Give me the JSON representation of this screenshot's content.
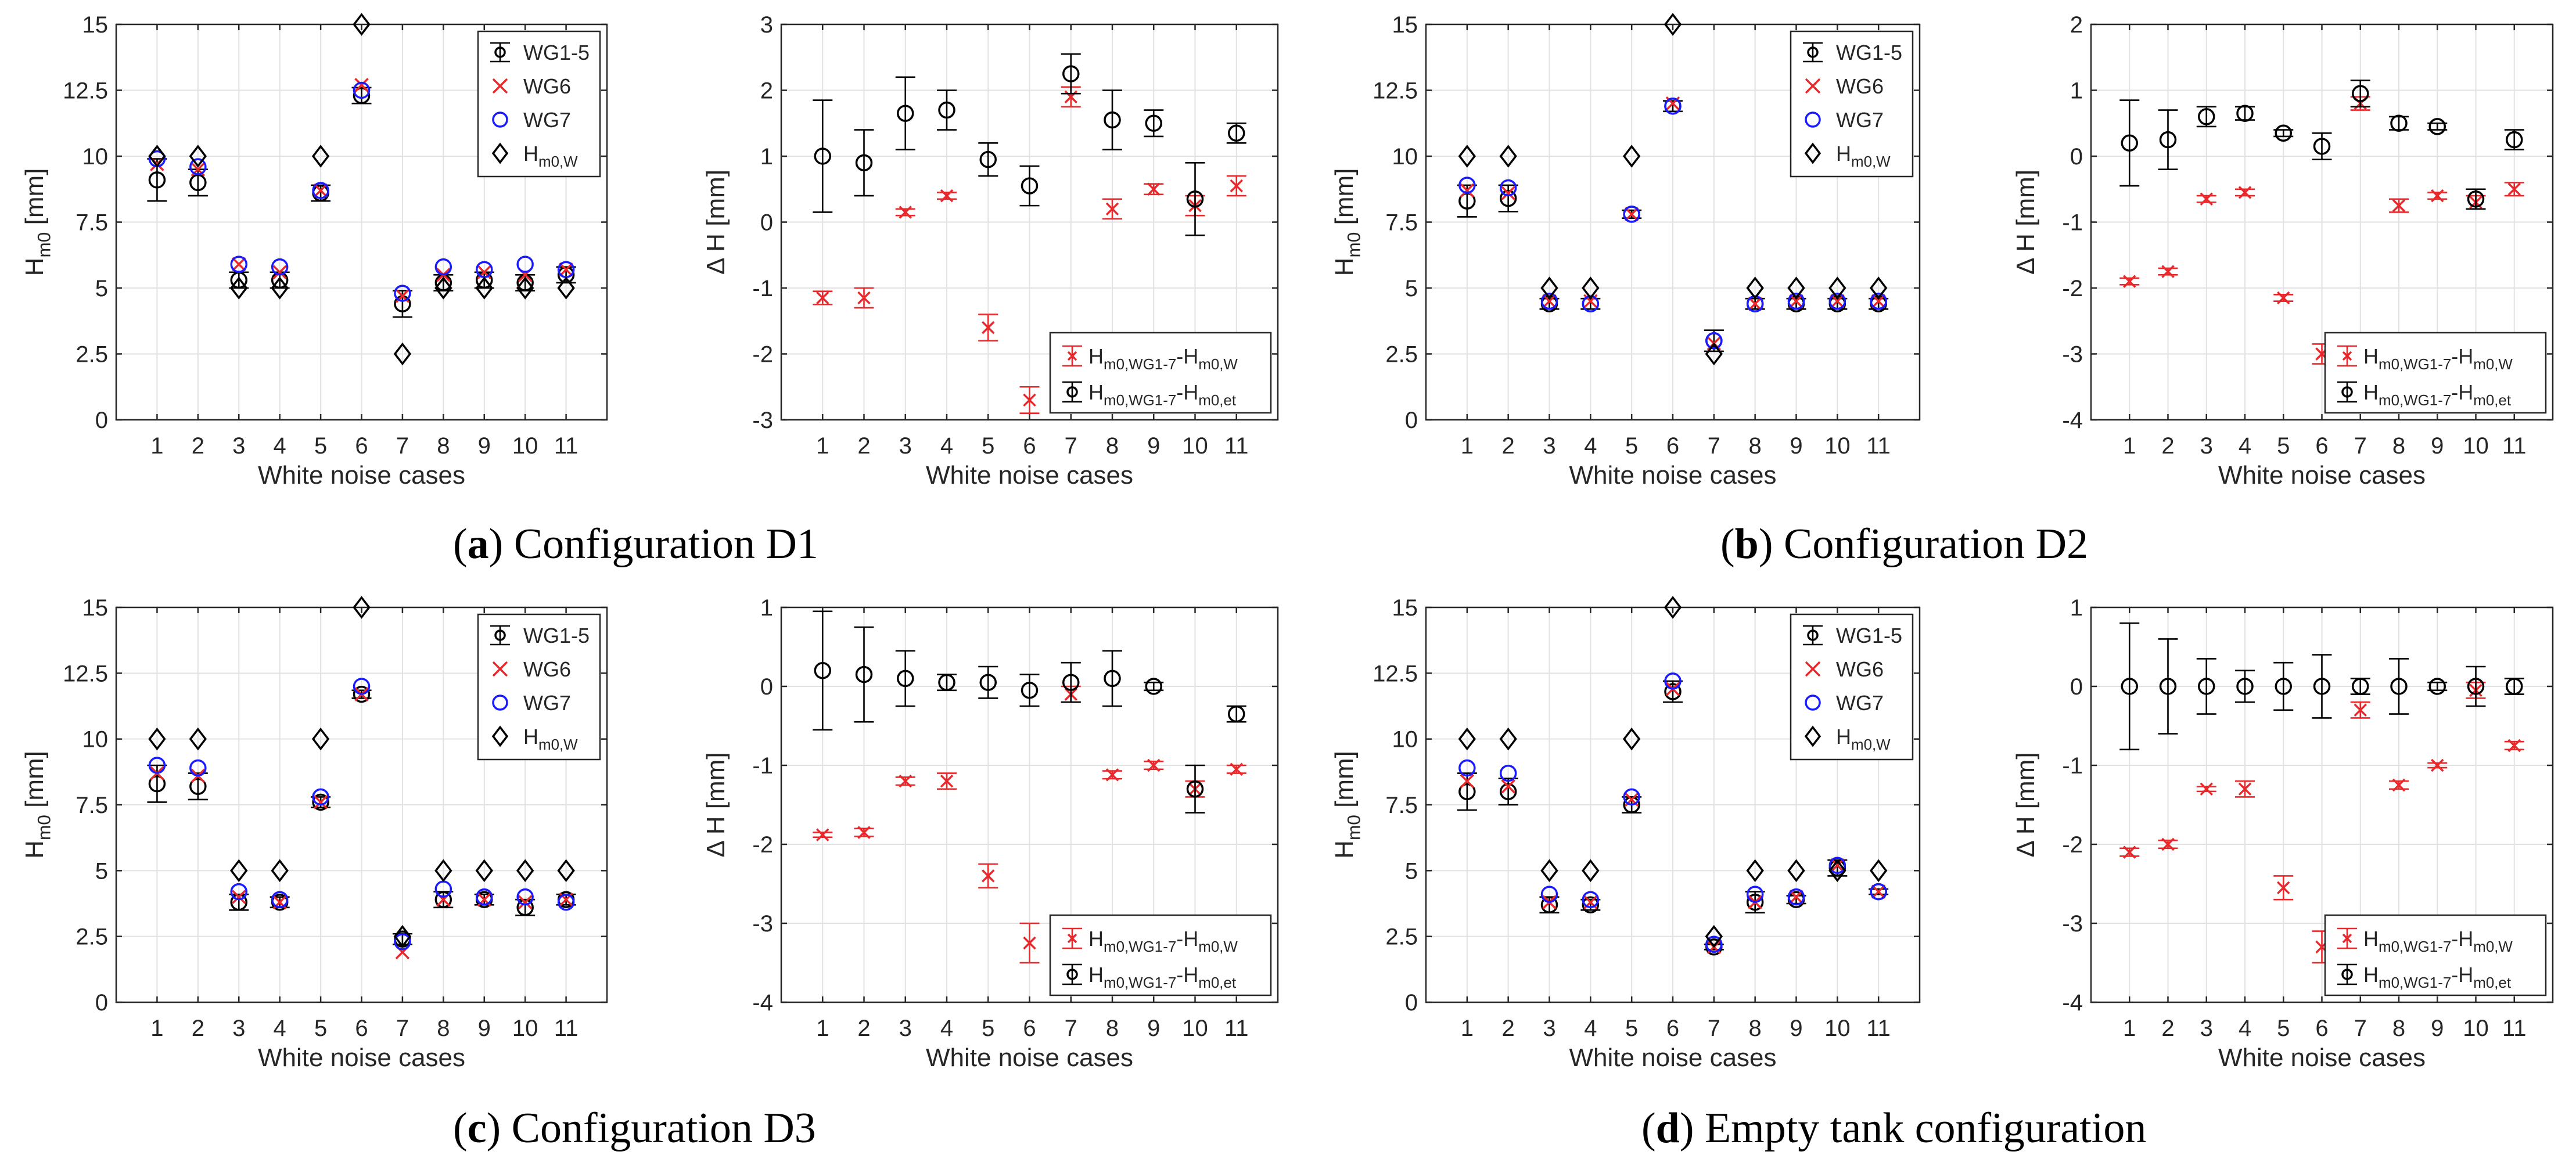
{
  "captions": [
    {
      "letter": "a",
      "text": "Configuration D1"
    },
    {
      "letter": "b",
      "text": "Configuration D2"
    },
    {
      "letter": "c",
      "text": "Configuration D3"
    },
    {
      "letter": "d",
      "text": "Empty tank configuration"
    }
  ],
  "colors": {
    "black": "#000000",
    "red": "#e8282b",
    "blue": "#1a1aff",
    "grid": "#e2e2e2",
    "axis": "#262626"
  },
  "chart_data": [
    {
      "type": "scatter",
      "panel": "a-left",
      "xlabel": "White noise cases",
      "ylabel": "H_m0 [mm]",
      "ylim": [
        0,
        15
      ],
      "yticks": [
        "0",
        "2.5",
        "5",
        "7.5",
        "10",
        "12.5",
        "15"
      ],
      "xticks": [
        "1",
        "2",
        "3",
        "4",
        "5",
        "6",
        "7",
        "8",
        "9",
        "10",
        "11"
      ],
      "legend": [
        "WG1-5",
        "WG6",
        "WG7",
        "H_m0,W"
      ],
      "series": [
        {
          "name": "WG1-5",
          "values": [
            9.1,
            9.0,
            5.3,
            5.3,
            8.6,
            12.3,
            4.4,
            5.2,
            5.3,
            5.2,
            5.5
          ],
          "err": [
            0.8,
            0.5,
            0.3,
            0.3,
            0.3,
            0.3,
            0.5,
            0.3,
            0.3,
            0.3,
            0.3
          ]
        },
        {
          "name": "WG6",
          "values": [
            9.7,
            9.5,
            5.9,
            5.6,
            8.7,
            12.7,
            4.7,
            5.5,
            5.6,
            5.5,
            5.7
          ]
        },
        {
          "name": "WG7",
          "values": [
            9.9,
            9.6,
            5.9,
            5.8,
            8.7,
            12.5,
            4.8,
            5.8,
            5.7,
            5.9,
            5.7
          ]
        },
        {
          "name": "H_m0,W",
          "values": [
            10,
            10,
            5,
            5,
            10,
            15,
            2.5,
            5,
            5,
            5,
            5
          ]
        }
      ]
    },
    {
      "type": "scatter",
      "panel": "a-right",
      "xlabel": "White noise cases",
      "ylabel": "Δ H [mm]",
      "ylim": [
        -3,
        3
      ],
      "yticks": [
        "-3",
        "-2",
        "-1",
        "0",
        "1",
        "2",
        "3"
      ],
      "xticks": [
        "1",
        "2",
        "3",
        "4",
        "5",
        "6",
        "7",
        "8",
        "9",
        "10",
        "11"
      ],
      "legend": [
        "H_m0,WG1-7-H_m0,W",
        "H_m0,WG1-7-H_m0,et"
      ],
      "series": [
        {
          "name": "H_m0,WG1-7-H_m0,W",
          "values": [
            -1.15,
            -1.15,
            0.15,
            0.4,
            -1.6,
            -2.7,
            1.9,
            0.2,
            0.5,
            0.25,
            0.55
          ],
          "err": [
            0.1,
            0.15,
            0.05,
            0.05,
            0.2,
            0.2,
            0.15,
            0.15,
            0.08,
            0.15,
            0.15
          ]
        },
        {
          "name": "H_m0,WG1-7-H_m0,et",
          "values": [
            1.0,
            0.9,
            1.65,
            1.7,
            0.95,
            0.55,
            2.25,
            1.55,
            1.5,
            0.35,
            1.35
          ],
          "err": [
            0.85,
            0.5,
            0.55,
            0.3,
            0.25,
            0.3,
            0.3,
            0.45,
            0.2,
            0.55,
            0.15
          ]
        }
      ]
    },
    {
      "type": "scatter",
      "panel": "b-left",
      "xlabel": "White noise cases",
      "ylabel": "H_m0 [mm]",
      "ylim": [
        0,
        15
      ],
      "yticks": [
        "0",
        "2.5",
        "5",
        "7.5",
        "10",
        "12.5",
        "15"
      ],
      "xticks": [
        "1",
        "2",
        "3",
        "4",
        "5",
        "6",
        "7",
        "8",
        "9",
        "10",
        "11"
      ],
      "legend": [
        "WG1-5",
        "WG6",
        "WG7",
        "H_m0,W"
      ],
      "series": [
        {
          "name": "WG1-5",
          "values": [
            8.3,
            8.4,
            4.4,
            4.4,
            7.8,
            11.9,
            3.0,
            4.4,
            4.4,
            4.4,
            4.4
          ],
          "err": [
            0.6,
            0.5,
            0.2,
            0.2,
            0.15,
            0.2,
            0.4,
            0.2,
            0.2,
            0.2,
            0.2
          ]
        },
        {
          "name": "WG6",
          "values": [
            8.7,
            8.6,
            4.5,
            4.5,
            7.8,
            12.0,
            2.9,
            4.4,
            4.5,
            4.5,
            4.5
          ]
        },
        {
          "name": "WG7",
          "values": [
            8.9,
            8.8,
            4.5,
            4.4,
            7.8,
            11.9,
            3.0,
            4.4,
            4.5,
            4.5,
            4.5
          ]
        },
        {
          "name": "H_m0,W",
          "values": [
            10,
            10,
            5,
            5,
            10,
            15,
            2.5,
            5,
            5,
            5,
            5
          ]
        }
      ]
    },
    {
      "type": "scatter",
      "panel": "b-right",
      "xlabel": "White noise cases",
      "ylabel": "Δ H [mm]",
      "ylim": [
        -4,
        2
      ],
      "yticks": [
        "-4",
        "-3",
        "-2",
        "-1",
        "0",
        "1",
        "2"
      ],
      "xticks": [
        "1",
        "2",
        "3",
        "4",
        "5",
        "6",
        "7",
        "8",
        "9",
        "10",
        "11"
      ],
      "legend": [
        "H_m0,WG1-7-H_m0,W",
        "H_m0,WG1-7-H_m0,et"
      ],
      "series": [
        {
          "name": "H_m0,WG1-7-H_m0,W",
          "values": [
            -1.9,
            -1.75,
            -0.65,
            -0.55,
            -2.15,
            -3.0,
            0.8,
            -0.75,
            -0.6,
            -0.7,
            -0.5
          ],
          "err": [
            0.05,
            0.05,
            0.05,
            0.05,
            0.05,
            0.15,
            0.1,
            0.1,
            0.05,
            0.1,
            0.1
          ]
        },
        {
          "name": "H_m0,WG1-7-H_m0,et",
          "values": [
            0.2,
            0.25,
            0.6,
            0.65,
            0.35,
            0.15,
            0.95,
            0.5,
            0.45,
            -0.65,
            0.25
          ],
          "err": [
            0.65,
            0.45,
            0.15,
            0.1,
            0.05,
            0.2,
            0.2,
            0.1,
            0.05,
            0.15,
            0.15
          ]
        }
      ]
    },
    {
      "type": "scatter",
      "panel": "c-left",
      "xlabel": "White noise cases",
      "ylabel": "H_m0 [mm]",
      "ylim": [
        0,
        15
      ],
      "yticks": [
        "0",
        "2.5",
        "5",
        "7.5",
        "10",
        "12.5",
        "15"
      ],
      "xticks": [
        "1",
        "2",
        "3",
        "4",
        "5",
        "6",
        "7",
        "8",
        "9",
        "10",
        "11"
      ],
      "legend": [
        "WG1-5",
        "WG6",
        "WG7",
        "H_m0,W"
      ],
      "series": [
        {
          "name": "WG1-5",
          "values": [
            8.3,
            8.2,
            3.8,
            3.8,
            7.6,
            11.7,
            2.4,
            3.9,
            3.9,
            3.6,
            3.9
          ],
          "err": [
            0.7,
            0.5,
            0.3,
            0.2,
            0.2,
            0.15,
            0.2,
            0.3,
            0.2,
            0.3,
            0.2
          ]
        },
        {
          "name": "WG6",
          "values": [
            8.7,
            8.6,
            4.0,
            3.8,
            7.6,
            11.7,
            1.9,
            3.9,
            3.9,
            3.8,
            3.9
          ]
        },
        {
          "name": "WG7",
          "values": [
            9.0,
            8.9,
            4.2,
            3.9,
            7.8,
            12.0,
            2.3,
            4.3,
            4.0,
            4.0,
            3.8
          ]
        },
        {
          "name": "H_m0,W",
          "values": [
            10,
            10,
            5,
            5,
            10,
            15,
            2.5,
            5,
            5,
            5,
            5
          ]
        }
      ]
    },
    {
      "type": "scatter",
      "panel": "c-right",
      "xlabel": "White noise cases",
      "ylabel": "Δ H [mm]",
      "ylim": [
        -4,
        1
      ],
      "yticks": [
        "-4",
        "-3",
        "-2",
        "-1",
        "0",
        "1"
      ],
      "xticks": [
        "1",
        "2",
        "3",
        "4",
        "5",
        "6",
        "7",
        "8",
        "9",
        "10",
        "11"
      ],
      "legend": [
        "H_m0,WG1-7-H_m0,W",
        "H_m0,WG1-7-H_m0,et"
      ],
      "series": [
        {
          "name": "H_m0,WG1-7-H_m0,W",
          "values": [
            -1.88,
            -1.85,
            -1.2,
            -1.2,
            -2.4,
            -3.25,
            -0.1,
            -1.12,
            -1.0,
            -1.3,
            -1.05
          ],
          "err": [
            0.03,
            0.05,
            0.05,
            0.1,
            0.15,
            0.25,
            0.1,
            0.05,
            0.05,
            0.1,
            0.05
          ]
        },
        {
          "name": "H_m0,WG1-7-H_m0,et",
          "values": [
            0.2,
            0.15,
            0.1,
            0.05,
            0.05,
            -0.05,
            0.05,
            0.1,
            0.0,
            -1.3,
            -0.35
          ],
          "err": [
            0.75,
            0.6,
            0.35,
            0.1,
            0.2,
            0.2,
            0.25,
            0.35,
            0.05,
            0.3,
            0.1
          ]
        }
      ]
    },
    {
      "type": "scatter",
      "panel": "d-left",
      "xlabel": "White noise cases",
      "ylabel": "H_m0 [mm]",
      "ylim": [
        0,
        15
      ],
      "yticks": [
        "0",
        "2.5",
        "5",
        "7.5",
        "10",
        "12.5",
        "15"
      ],
      "xticks": [
        "1",
        "2",
        "3",
        "4",
        "5",
        "6",
        "7",
        "8",
        "9",
        "10",
        "11"
      ],
      "legend": [
        "WG1-5",
        "WG6",
        "WG7",
        "H_m0,W"
      ],
      "series": [
        {
          "name": "WG1-5",
          "values": [
            8.0,
            8.0,
            3.7,
            3.7,
            7.5,
            11.8,
            2.1,
            3.8,
            3.9,
            5.1,
            4.2
          ],
          "err": [
            0.7,
            0.5,
            0.3,
            0.2,
            0.3,
            0.4,
            0.1,
            0.4,
            0.15,
            0.3,
            0.1
          ]
        },
        {
          "name": "WG6",
          "values": [
            8.4,
            8.2,
            3.8,
            3.8,
            7.7,
            11.9,
            2.1,
            3.8,
            4.0,
            5.2,
            4.2
          ]
        },
        {
          "name": "WG7",
          "values": [
            8.9,
            8.7,
            4.1,
            3.9,
            7.8,
            12.2,
            2.2,
            4.1,
            4.0,
            5.2,
            4.2
          ]
        },
        {
          "name": "H_m0,W",
          "values": [
            10,
            10,
            5,
            5,
            10,
            15,
            2.5,
            5,
            5,
            5,
            5
          ]
        }
      ]
    },
    {
      "type": "scatter",
      "panel": "d-right",
      "xlabel": "White noise cases",
      "ylabel": "Δ H [mm]",
      "ylim": [
        -4,
        1
      ],
      "yticks": [
        "-4",
        "-3",
        "-2",
        "-1",
        "0",
        "1"
      ],
      "xticks": [
        "1",
        "2",
        "3",
        "4",
        "5",
        "6",
        "7",
        "8",
        "9",
        "10",
        "11"
      ],
      "legend": [
        "H_m0,WG1-7-H_m0,W",
        "H_m0,WG1-7-H_m0,et"
      ],
      "series": [
        {
          "name": "H_m0,WG1-7-H_m0,W",
          "values": [
            -2.1,
            -2.0,
            -1.3,
            -1.3,
            -2.55,
            -3.3,
            -0.3,
            -1.25,
            -1.0,
            -0.05,
            -0.75
          ],
          "err": [
            0.05,
            0.05,
            0.03,
            0.1,
            0.15,
            0.2,
            0.1,
            0.05,
            0.03,
            0.1,
            0.05
          ]
        },
        {
          "name": "H_m0,WG1-7-H_m0,et",
          "values": [
            0,
            0,
            0,
            0,
            0,
            0,
            0,
            0,
            0,
            0,
            0
          ],
          "err": [
            0.8,
            0.6,
            0.35,
            0.2,
            0.3,
            0.4,
            0.1,
            0.35,
            0.05,
            0.25,
            0.1
          ]
        }
      ]
    }
  ]
}
